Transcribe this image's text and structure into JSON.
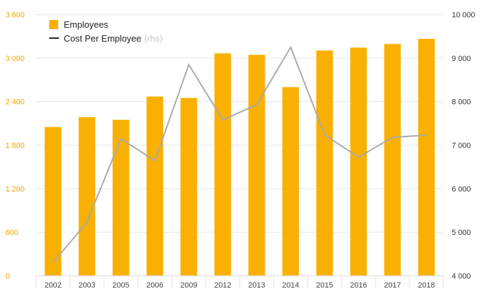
{
  "chart_data": {
    "type": "bar+line",
    "categories": [
      "2002",
      "2003",
      "2005",
      "2006",
      "2009",
      "2012",
      "2013",
      "2014",
      "2015",
      "2016",
      "2017",
      "2018"
    ],
    "series": [
      {
        "name": "Employees",
        "kind": "bar",
        "axis": "left",
        "color": "#f9b000",
        "values": [
          2050,
          2185,
          2150,
          2470,
          2450,
          3065,
          3045,
          2600,
          3105,
          3145,
          3195,
          3265
        ]
      },
      {
        "name": "Cost Per Employee",
        "kind": "line",
        "axis": "right",
        "color": "#aaaaaa",
        "values": [
          4300,
          5230,
          7150,
          6640,
          8850,
          7580,
          7930,
          9250,
          7240,
          6720,
          7180,
          7230
        ]
      }
    ],
    "y_left": {
      "min": 0,
      "max": 3600,
      "ticks": [
        0,
        600,
        1200,
        1800,
        2400,
        3000,
        3600
      ],
      "tick_labels": [
        "0",
        "600",
        "1 200",
        "1 800",
        "2 400",
        "3 000",
        "3 600"
      ]
    },
    "y_right": {
      "min": 4000,
      "max": 10000,
      "ticks": [
        4000,
        5000,
        6000,
        7000,
        8000,
        9000,
        10000
      ],
      "tick_labels": [
        "4 000",
        "5 000",
        "6 000",
        "7 000",
        "8 000",
        "9 000",
        "10 000"
      ]
    },
    "legend": {
      "position": "top-left",
      "items": [
        {
          "label": "Employees",
          "swatch": "box",
          "color": "#f9b000"
        },
        {
          "label": "Cost Per Employee",
          "note": "(rhs)",
          "swatch": "line",
          "color": "#222222"
        }
      ]
    },
    "left_axis_color": "#f0a500",
    "grid": true
  }
}
